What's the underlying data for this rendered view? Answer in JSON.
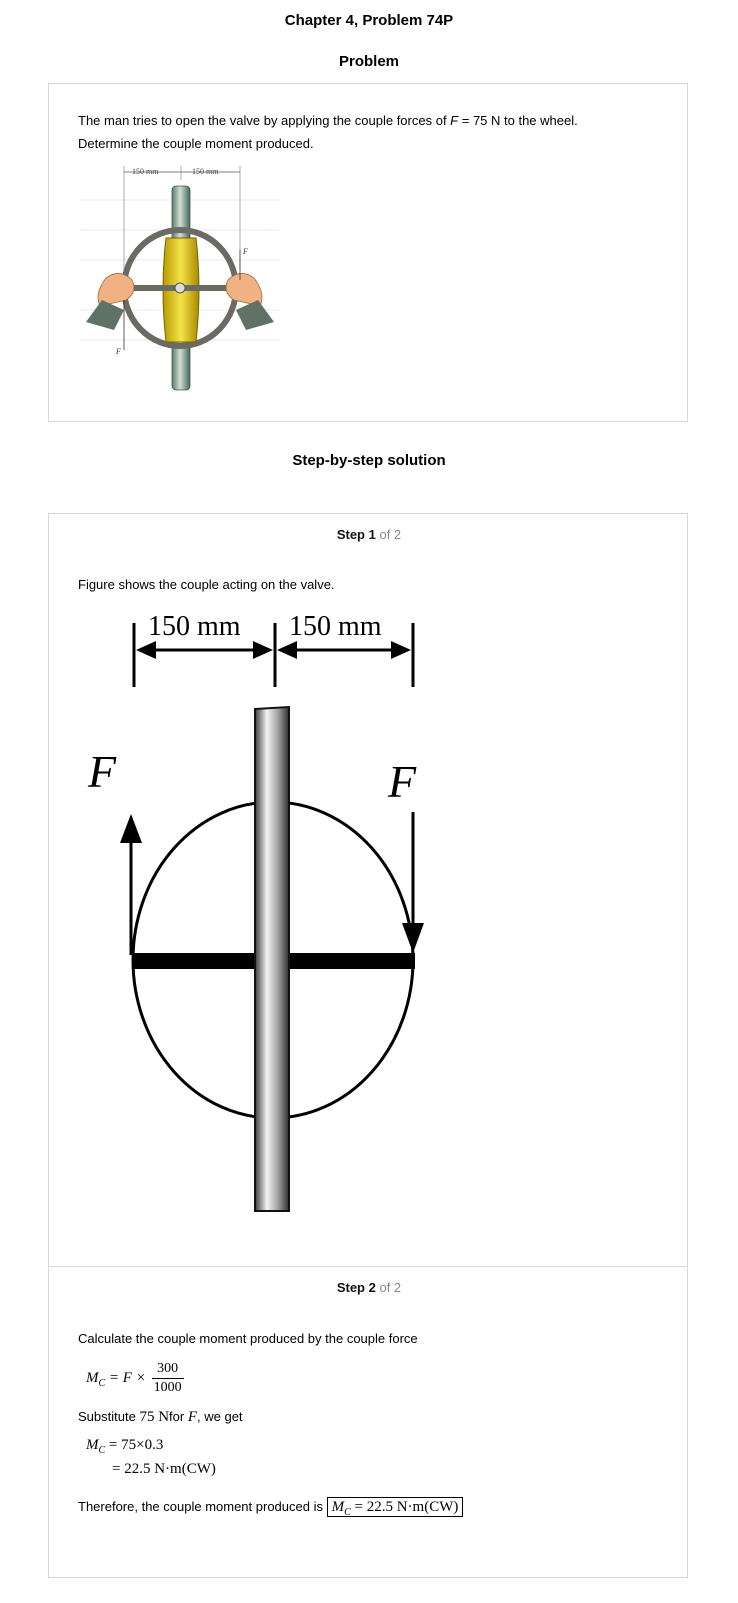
{
  "header": {
    "chapter_title": "Chapter 4, Problem 74P",
    "problem_heading": "Problem",
    "solution_heading": "Step-by-step solution"
  },
  "problem": {
    "text_part1": "The man tries to open the valve by applying the couple forces of ",
    "text_var": "F",
    "text_part2": " = 75 N to the wheel.",
    "text_line2": "Determine the couple moment produced.",
    "figure_dim_left": "150 mm",
    "figure_dim_right": "150 mm",
    "figure_force_label": "F"
  },
  "step1": {
    "label": "Step 1",
    "of": "of 2",
    "text": "Figure shows the couple acting on the valve.",
    "dim_left": "150 mm",
    "dim_right": "150 mm",
    "force_left": "F",
    "force_right": "F"
  },
  "step2": {
    "label": "Step 2",
    "of": "of 2",
    "text1": "Calculate the couple moment produced by the couple force",
    "eq1_lhs": "M",
    "eq1_sub": "C",
    "eq1_rhs": "= F ×",
    "eq1_num": "300",
    "eq1_den": "1000",
    "subst_pre": "Substitute",
    "subst_val": "75 N",
    "subst_for": "for",
    "subst_var": "F",
    "subst_post": ", we get",
    "eq2_line1": "= 75×0.3",
    "eq2_line2": "= 22.5 N·m(CW)",
    "conclusion": "Therefore, the couple moment produced is",
    "final_answer": "= 22.5 N·m(CW)"
  }
}
